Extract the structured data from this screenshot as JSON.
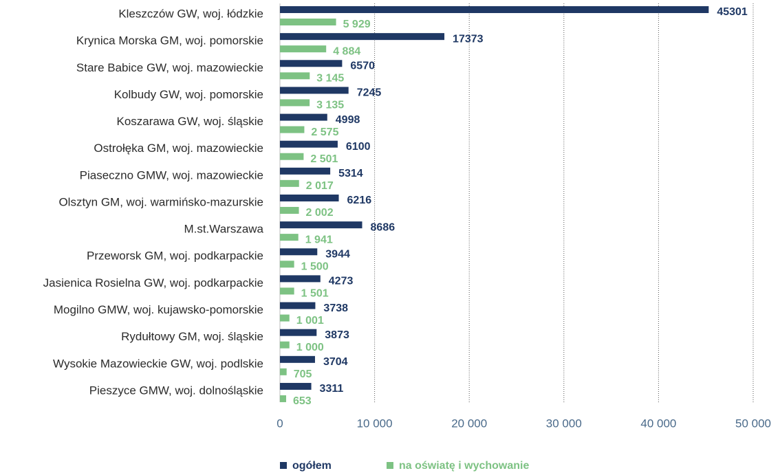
{
  "chart_data": {
    "type": "bar",
    "orientation": "horizontal",
    "categories": [
      "Kleszczów GW, woj. łódzkie",
      "Krynica Morska GM, woj. pomorskie",
      "Stare Babice GW, woj. mazowieckie",
      "Kolbudy GW, woj. pomorskie",
      "Koszarawa GW, woj. śląskie",
      "Ostrołęka GM, woj. mazowieckie",
      "Piaseczno GMW, woj. mazowieckie",
      "Olsztyn GM, woj. warmińsko-mazurskie",
      "M.st.Warszawa",
      "Przeworsk GM, woj. podkarpackie",
      "Jasienica Rosielna GW, woj. podkarpackie",
      "Mogilno GMW, woj. kujawsko-pomorskie",
      "Rydułtowy GM, woj. śląskie",
      "Wysokie Mazowieckie GW, woj. podlskie",
      "Pieszyce GMW, woj. dolnośląskie"
    ],
    "series": [
      {
        "name": "ogółem",
        "color": "#1f3864",
        "values": [
          45301,
          17373,
          6570,
          7245,
          4998,
          6100,
          5314,
          6216,
          8686,
          3944,
          4273,
          3738,
          3873,
          3704,
          3311
        ]
      },
      {
        "name": "na oświatę i wychowanie",
        "color": "#7dc283",
        "values": [
          5929,
          4884,
          3145,
          3135,
          2575,
          2501,
          2017,
          2002,
          1941,
          1500,
          1501,
          1001,
          1000,
          705,
          653
        ],
        "value_labels": [
          "5 929",
          "4 884",
          "3 145",
          "3 135",
          "2 575",
          "2 501",
          "2 017",
          "2 002",
          "1 941",
          "1 500",
          "1 501",
          "1 001",
          "1 000",
          "705",
          "653"
        ]
      }
    ],
    "xlim": [
      0,
      50000
    ],
    "xticks": [
      0,
      {
        "value": 10000,
        "label": "10 000"
      },
      {
        "value": 20000,
        "label": "20 000"
      },
      {
        "value": 30000,
        "label": "30 000"
      },
      {
        "value": 40000,
        "label": "40 000"
      },
      {
        "value": 50000,
        "label": "50 000"
      }
    ],
    "grid": true,
    "legend": "bottom"
  }
}
